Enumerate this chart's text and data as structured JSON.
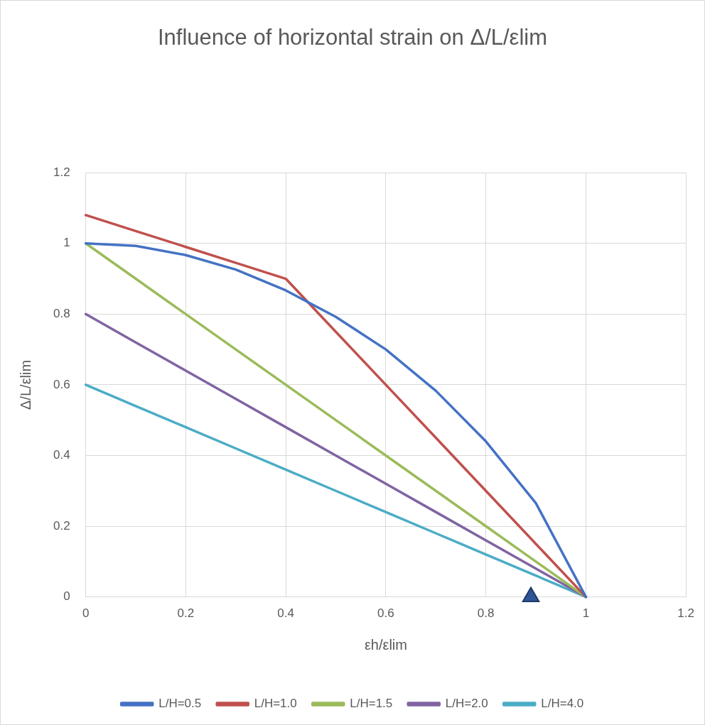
{
  "chart_data": {
    "type": "line",
    "title": "Influence of horizontal strain on Δ/L/εlim",
    "xlabel": "εh/εlim",
    "ylabel": "Δ/L/εlim",
    "x": [
      0,
      0.1,
      0.2,
      0.3,
      0.4,
      0.5,
      0.6,
      0.7,
      0.8,
      0.9,
      1.0
    ],
    "series": [
      {
        "name": "L/H=0.5",
        "color": "#4472c4",
        "values": [
          1.0,
          0.993,
          0.967,
          0.926,
          0.867,
          0.792,
          0.7,
          0.583,
          0.44,
          0.265,
          0
        ]
      },
      {
        "name": "L/H=1.0",
        "color": "#c0504d",
        "values": [
          1.08,
          1.035,
          0.99,
          0.945,
          0.9,
          0.75,
          0.6,
          0.45,
          0.3,
          0.15,
          0
        ]
      },
      {
        "name": "L/H=1.5",
        "color": "#9bbb59",
        "values": [
          1.0,
          0.9,
          0.8,
          0.7,
          0.6,
          0.5,
          0.4,
          0.3,
          0.2,
          0.1,
          0
        ]
      },
      {
        "name": "L/H=2.0",
        "color": "#8064a2",
        "values": [
          0.8,
          0.72,
          0.64,
          0.56,
          0.48,
          0.4,
          0.32,
          0.24,
          0.16,
          0.08,
          0
        ]
      },
      {
        "name": "L/H=4.0",
        "color": "#4bacc6",
        "values": [
          0.6,
          0.54,
          0.48,
          0.42,
          0.36,
          0.3,
          0.24,
          0.18,
          0.12,
          0.06,
          0
        ]
      },
      {
        "type": "scatter",
        "marker": "triangle",
        "color": "#2f5597",
        "x": [
          0.89
        ],
        "values": [
          0
        ]
      }
    ],
    "xlim": [
      0,
      1.2
    ],
    "xticks": [
      0,
      0.2,
      0.4,
      0.6,
      0.8,
      1,
      1.2
    ],
    "ylim": [
      0,
      1.2
    ],
    "yticks": [
      0,
      0.2,
      0.4,
      0.6,
      0.8,
      1,
      1.2
    ],
    "grid": true,
    "legend": "bottom",
    "marker": "none",
    "line_style": "solid"
  }
}
